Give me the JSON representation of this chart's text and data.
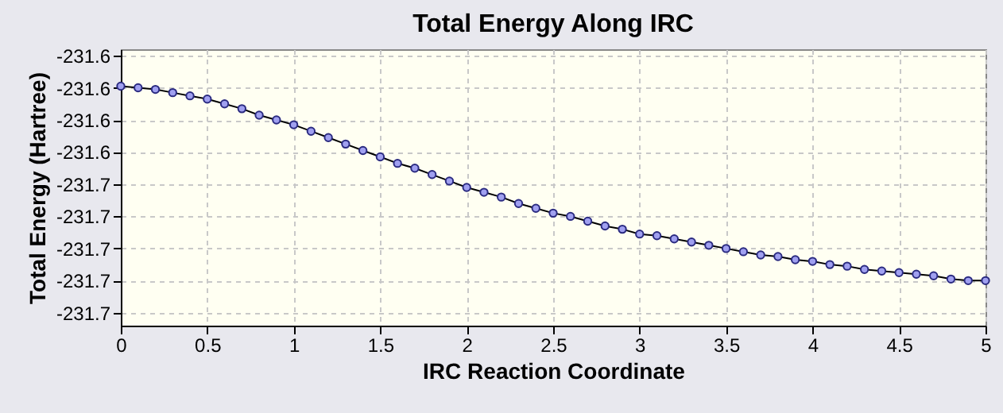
{
  "chart_data": {
    "type": "line",
    "title": "Total Energy Along IRC",
    "xlabel": "IRC Reaction Coordinate",
    "ylabel": "Total Energy (Hartree)",
    "x": [
      0,
      0.1,
      0.2,
      0.3,
      0.4,
      0.5,
      0.6,
      0.7,
      0.8,
      0.9,
      1.0,
      1.1,
      1.2,
      1.3,
      1.4,
      1.5,
      1.6,
      1.7,
      1.8,
      1.9,
      2.0,
      2.1,
      2.2,
      2.3,
      2.4,
      2.5,
      2.6,
      2.7,
      2.8,
      2.9,
      3.0,
      3.1,
      3.2,
      3.3,
      3.4,
      3.5,
      3.6,
      3.7,
      3.8,
      3.9,
      4.0,
      4.1,
      4.2,
      4.3,
      4.4,
      4.5,
      4.6,
      4.7,
      4.8,
      4.9,
      5.0
    ],
    "series": [
      {
        "color": "#a0a0f0",
        "values": [
          -231.599,
          -231.6,
          -231.601,
          -231.603,
          -231.605,
          -231.607,
          -231.61,
          -231.613,
          -231.617,
          -231.62,
          -231.623,
          -231.627,
          -231.631,
          -231.635,
          -231.639,
          -231.643,
          -231.647,
          -231.65,
          -231.654,
          -231.658,
          -231.662,
          -231.665,
          -231.668,
          -231.672,
          -231.675,
          -231.678,
          -231.68,
          -231.683,
          -231.686,
          -231.688,
          -231.691,
          -231.692,
          -231.694,
          -231.696,
          -231.698,
          -231.7,
          -231.702,
          -231.704,
          -231.705,
          -231.707,
          -231.708,
          -231.71,
          -231.711,
          -231.713,
          -231.714,
          -231.715,
          -231.716,
          -231.717,
          -231.719,
          -231.72,
          -231.72
        ]
      }
    ],
    "xlim": [
      0,
      5
    ],
    "xticks": [
      0,
      0.5,
      1,
      1.5,
      2,
      2.5,
      3,
      3.5,
      4,
      4.5,
      5
    ],
    "ylim": [
      -231.748,
      -231.576
    ],
    "yticks": [
      {
        "value": -231.58,
        "label": "-231.6"
      },
      {
        "value": -231.6,
        "label": "-231.6"
      },
      {
        "value": -231.62,
        "label": "-231.6"
      },
      {
        "value": -231.64,
        "label": "-231.6"
      },
      {
        "value": -231.66,
        "label": "-231.7"
      },
      {
        "value": -231.68,
        "label": "-231.7"
      },
      {
        "value": -231.7,
        "label": "-231.7"
      },
      {
        "value": -231.72,
        "label": "-231.7"
      },
      {
        "value": -231.74,
        "label": "-231.7"
      }
    ],
    "grid": true,
    "marker": "circle",
    "line_style": "solid"
  }
}
